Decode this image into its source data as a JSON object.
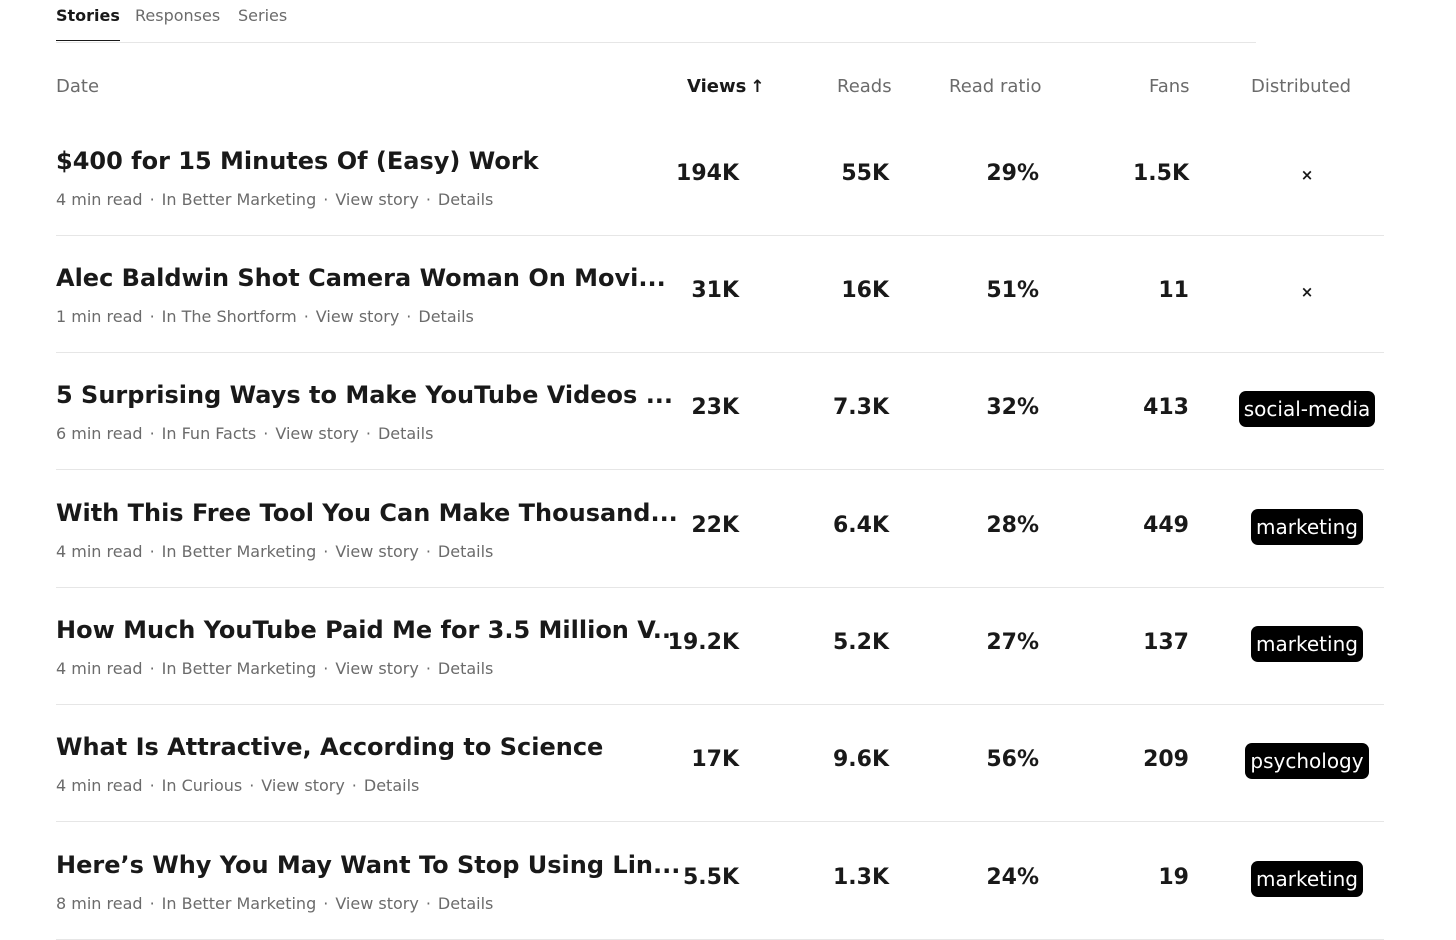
{
  "tabs": [
    {
      "label": "Stories",
      "active": true
    },
    {
      "label": "Responses",
      "active": false
    },
    {
      "label": "Series",
      "active": false
    }
  ],
  "columns": {
    "date": "Date",
    "views": "Views",
    "views_sort_icon": "arrow-up-icon",
    "views_sort_glyph": "↑",
    "reads": "Reads",
    "read_ratio": "Read ratio",
    "fans": "Fans",
    "distributed": "Distributed"
  },
  "stories": [
    {
      "title": "$400 for 15 Minutes Of (Easy) Work",
      "read_time": "4 min read",
      "publication": "In Better Marketing",
      "view_link": "View story",
      "details_link": "Details",
      "views": "194K",
      "reads": "55K",
      "read_ratio": "29%",
      "fans": "1.5K",
      "distributed": "×",
      "distributed_tag": false
    },
    {
      "title": "Alec Baldwin Shot Camera Woman On Movi...",
      "read_time": "1 min read",
      "publication": "In The Shortform",
      "view_link": "View story",
      "details_link": "Details",
      "views": "31K",
      "reads": "16K",
      "read_ratio": "51%",
      "fans": "11",
      "distributed": "×",
      "distributed_tag": false
    },
    {
      "title": "5 Surprising Ways to Make YouTube Videos ...",
      "read_time": "6 min read",
      "publication": "In Fun Facts",
      "view_link": "View story",
      "details_link": "Details",
      "views": "23K",
      "reads": "7.3K",
      "read_ratio": "32%",
      "fans": "413",
      "distributed": "social-media",
      "distributed_tag": true
    },
    {
      "title": "With This Free Tool You Can Make Thousand...",
      "read_time": "4 min read",
      "publication": "In Better Marketing",
      "view_link": "View story",
      "details_link": "Details",
      "views": "22K",
      "reads": "6.4K",
      "read_ratio": "28%",
      "fans": "449",
      "distributed": "marketing",
      "distributed_tag": true
    },
    {
      "title": "How Much YouTube Paid Me for 3.5 Million V...",
      "read_time": "4 min read",
      "publication": "In Better Marketing",
      "view_link": "View story",
      "details_link": "Details",
      "views": "19.2K",
      "reads": "5.2K",
      "read_ratio": "27%",
      "fans": "137",
      "distributed": "marketing",
      "distributed_tag": true
    },
    {
      "title": "What Is Attractive, According to Science",
      "read_time": "4 min read",
      "publication": "In Curious",
      "view_link": "View story",
      "details_link": "Details",
      "views": "17K",
      "reads": "9.6K",
      "read_ratio": "56%",
      "fans": "209",
      "distributed": "psychology",
      "distributed_tag": true
    },
    {
      "title": "Here’s Why You May Want To Stop Using Lin...",
      "read_time": "8 min read",
      "publication": "In Better Marketing",
      "view_link": "View story",
      "details_link": "Details",
      "views": "5.5K",
      "reads": "1.3K",
      "read_ratio": "24%",
      "fans": "19",
      "distributed": "marketing",
      "distributed_tag": true
    }
  ]
}
